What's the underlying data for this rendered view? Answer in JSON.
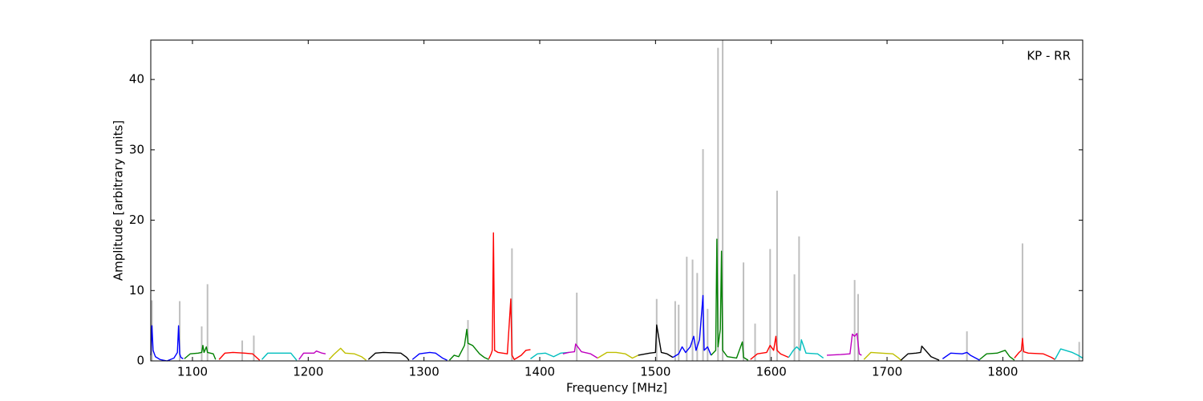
{
  "chart_data": {
    "type": "line",
    "annotation": "KP - RR",
    "x_label": "Frequency [MHz]",
    "y_label": "Amplitude [arbitrary units]",
    "xlim": [
      1064,
      1869
    ],
    "ylim": [
      0,
      45.6
    ],
    "xticks": [
      1100,
      1200,
      1300,
      1400,
      1500,
      1600,
      1700,
      1800
    ],
    "yticks": [
      0,
      10,
      20,
      30,
      40
    ],
    "series": [
      {
        "color": "#bfbfbf",
        "style": "spikes",
        "x": [
          1065,
          1089,
          1108,
          1113,
          1143,
          1153,
          1338,
          1376,
          1432,
          1501,
          1517,
          1520,
          1527,
          1532,
          1536,
          1541,
          1545,
          1554,
          1558,
          1576,
          1586,
          1599,
          1605,
          1620,
          1624,
          1672,
          1675,
          1769,
          1817,
          1866
        ],
        "values": [
          8.6,
          8.5,
          4.9,
          10.9,
          2.9,
          3.6,
          5.8,
          16.0,
          9.7,
          8.8,
          8.5,
          8.0,
          14.8,
          14.4,
          12.5,
          30.1,
          7.4,
          44.5,
          45.6,
          14.0,
          5.3,
          15.9,
          24.2,
          12.3,
          17.7,
          11.5,
          9.5,
          4.2,
          16.7,
          2.7
        ]
      },
      {
        "color": "#0000ff",
        "x": [
          1064,
          1065,
          1066,
          1068,
          1072,
          1078,
          1084,
          1087,
          1088,
          1089,
          1090,
          1092
        ],
        "values": [
          0.8,
          5.0,
          1.5,
          0.6,
          0.2,
          0.0,
          0.4,
          1.2,
          5.0,
          1.0,
          0.5,
          0.3
        ]
      },
      {
        "color": "#008000",
        "x": [
          1093,
          1098,
          1105,
          1108,
          1109,
          1110,
          1112,
          1113,
          1118,
          1120
        ],
        "values": [
          0.3,
          1.0,
          1.1,
          1.2,
          2.2,
          1.2,
          2.0,
          1.2,
          1.0,
          0.2
        ]
      },
      {
        "color": "#ff0000",
        "x": [
          1123,
          1128,
          1135,
          1145,
          1152,
          1156,
          1158
        ],
        "values": [
          0.2,
          1.1,
          1.2,
          1.1,
          1.0,
          0.4,
          0.1
        ]
      },
      {
        "color": "#00bfbf",
        "x": [
          1160,
          1165,
          1175,
          1185,
          1188,
          1190
        ],
        "values": [
          0.2,
          1.1,
          1.1,
          1.1,
          0.5,
          0.1
        ]
      },
      {
        "color": "#bf00bf",
        "x": [
          1192,
          1196,
          1205,
          1207,
          1212,
          1215
        ],
        "values": [
          0.2,
          1.1,
          1.1,
          1.4,
          1.1,
          1.0
        ]
      },
      {
        "color": "#bfbf00",
        "x": [
          1218,
          1222,
          1228,
          1232,
          1240,
          1246,
          1250
        ],
        "values": [
          0.2,
          0.9,
          1.8,
          1.1,
          1.0,
          0.6,
          0.1
        ]
      },
      {
        "color": "#000000",
        "x": [
          1252,
          1258,
          1265,
          1280,
          1285,
          1287
        ],
        "values": [
          0.2,
          1.1,
          1.2,
          1.1,
          0.5,
          0.1
        ]
      },
      {
        "color": "#0000ff",
        "x": [
          1290,
          1296,
          1305,
          1310,
          1316,
          1320
        ],
        "values": [
          0.2,
          1.0,
          1.2,
          1.1,
          0.4,
          0.1
        ]
      },
      {
        "color": "#008000",
        "x": [
          1322,
          1326,
          1330,
          1335,
          1337,
          1338,
          1342,
          1348,
          1352,
          1356
        ],
        "values": [
          0.1,
          0.8,
          0.6,
          2.2,
          4.5,
          2.5,
          2.2,
          1.0,
          0.5,
          0.2
        ]
      },
      {
        "color": "#ff0000",
        "x": [
          1356,
          1358,
          1359,
          1360,
          1361,
          1364,
          1372,
          1375,
          1376,
          1378,
          1384,
          1388,
          1392
        ],
        "values": [
          0.3,
          1.0,
          1.5,
          18.2,
          1.5,
          1.2,
          1.0,
          8.8,
          0.8,
          0.2,
          0.8,
          1.5,
          1.6
        ]
      },
      {
        "color": "#00bfbf",
        "x": [
          1392,
          1398,
          1405,
          1412,
          1418,
          1425
        ],
        "values": [
          0.3,
          1.0,
          1.1,
          0.6,
          1.1,
          1.2
        ]
      },
      {
        "color": "#bf00bf",
        "x": [
          1420,
          1425,
          1430,
          1431,
          1436,
          1444,
          1450
        ],
        "values": [
          1.0,
          1.2,
          1.3,
          2.4,
          1.3,
          1.0,
          0.4
        ]
      },
      {
        "color": "#bfbf00",
        "x": [
          1450,
          1458,
          1466,
          1474,
          1480,
          1485
        ],
        "values": [
          0.4,
          1.2,
          1.2,
          1.0,
          0.4,
          0.8
        ]
      },
      {
        "color": "#000000",
        "x": [
          1485,
          1495,
          1500,
          1501,
          1505,
          1510,
          1515
        ],
        "values": [
          0.8,
          1.1,
          1.2,
          5.1,
          1.2,
          1.0,
          0.5
        ]
      },
      {
        "color": "#0000ff",
        "x": [
          1515,
          1520,
          1523,
          1526,
          1530,
          1533,
          1535,
          1538,
          1541,
          1542,
          1545,
          1548
        ],
        "values": [
          0.5,
          1.0,
          2.0,
          1.2,
          2.0,
          3.5,
          1.5,
          3.0,
          9.3,
          1.5,
          2.0,
          0.8
        ]
      },
      {
        "color": "#008000",
        "x": [
          1548,
          1552,
          1553,
          1554,
          1556,
          1557,
          1558,
          1562,
          1570,
          1575,
          1576,
          1580
        ],
        "values": [
          0.8,
          1.5,
          17.3,
          2.0,
          4.5,
          15.6,
          1.5,
          0.6,
          0.4,
          2.7,
          0.5,
          0.1
        ]
      },
      {
        "color": "#ff0000",
        "x": [
          1582,
          1588,
          1596,
          1599,
          1602,
          1604,
          1605,
          1608,
          1615
        ],
        "values": [
          0.2,
          1.0,
          1.2,
          2.2,
          1.5,
          3.5,
          1.5,
          1.0,
          0.5
        ]
      },
      {
        "color": "#00bfbf",
        "x": [
          1615,
          1619,
          1622,
          1625,
          1626,
          1630,
          1640,
          1645
        ],
        "values": [
          0.5,
          1.5,
          2.0,
          1.5,
          3.0,
          1.1,
          1.0,
          0.4
        ]
      },
      {
        "color": "#bf00bf",
        "x": [
          1648,
          1660,
          1668,
          1670,
          1672,
          1674,
          1676,
          1678
        ],
        "values": [
          0.8,
          0.9,
          1.0,
          3.8,
          3.5,
          3.9,
          1.0,
          0.8
        ]
      },
      {
        "color": "#bfbf00",
        "x": [
          1680,
          1686,
          1695,
          1705,
          1710,
          1712
        ],
        "values": [
          0.2,
          1.2,
          1.1,
          1.0,
          0.4,
          0.1
        ]
      },
      {
        "color": "#000000",
        "x": [
          1712,
          1718,
          1725,
          1729,
          1730,
          1738,
          1745
        ],
        "values": [
          0.1,
          1.0,
          1.1,
          1.2,
          2.1,
          0.6,
          0.1
        ]
      },
      {
        "color": "#0000ff",
        "x": [
          1748,
          1755,
          1765,
          1769,
          1772,
          1780
        ],
        "values": [
          0.3,
          1.1,
          1.0,
          1.2,
          0.8,
          0.1
        ]
      },
      {
        "color": "#008000",
        "x": [
          1780,
          1786,
          1795,
          1802,
          1806,
          1810
        ],
        "values": [
          0.2,
          1.0,
          1.1,
          1.5,
          0.6,
          0.1
        ]
      },
      {
        "color": "#ff0000",
        "x": [
          1810,
          1814,
          1816,
          1817,
          1818,
          1822,
          1835,
          1842,
          1845
        ],
        "values": [
          0.4,
          1.2,
          1.5,
          3.2,
          1.3,
          1.1,
          1.0,
          0.5,
          0.2
        ]
      },
      {
        "color": "#00bfbf",
        "x": [
          1845,
          1850,
          1860,
          1865,
          1869
        ],
        "values": [
          0.2,
          1.7,
          1.2,
          0.8,
          0.4
        ]
      }
    ]
  }
}
